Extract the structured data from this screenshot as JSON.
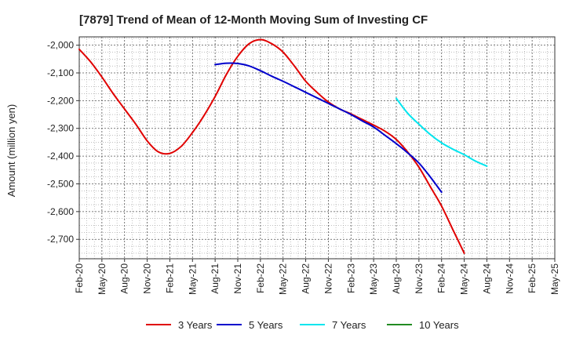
{
  "chart_data": {
    "type": "line",
    "title": "[7879]  Trend of Mean of 12-Month Moving Sum of Investing CF",
    "xlabel": "",
    "ylabel": "Amount (million yen)",
    "ylim": [
      -2770,
      -1970
    ],
    "yticks": [
      -2000,
      -2100,
      -2200,
      -2300,
      -2400,
      -2500,
      -2600,
      -2700
    ],
    "ytick_labels": [
      "-2,000",
      "-2,100",
      "-2,200",
      "-2,300",
      "-2,400",
      "-2,500",
      "-2,600",
      "-2,700"
    ],
    "x_categories": [
      "Feb-20",
      "May-20",
      "Aug-20",
      "Nov-20",
      "Feb-21",
      "May-21",
      "Aug-21",
      "Nov-21",
      "Feb-22",
      "May-22",
      "Aug-22",
      "Nov-22",
      "Feb-23",
      "May-23",
      "Aug-23",
      "Nov-23",
      "Feb-24",
      "May-24",
      "Aug-24",
      "Nov-24",
      "Feb-25",
      "May-25"
    ],
    "grid": true,
    "legend_position": "bottom",
    "series": [
      {
        "name": "3 Years",
        "color": "#e00000",
        "points": [
          [
            0,
            -2015
          ],
          [
            0.5,
            -2060
          ],
          [
            1,
            -2115
          ],
          [
            1.5,
            -2175
          ],
          [
            2,
            -2230
          ],
          [
            2.5,
            -2285
          ],
          [
            3,
            -2345
          ],
          [
            3.5,
            -2385
          ],
          [
            4,
            -2390
          ],
          [
            4.5,
            -2365
          ],
          [
            5,
            -2315
          ],
          [
            5.5,
            -2255
          ],
          [
            6,
            -2185
          ],
          [
            6.5,
            -2105
          ],
          [
            7,
            -2040
          ],
          [
            7.5,
            -1995
          ],
          [
            8,
            -1980
          ],
          [
            8.5,
            -1995
          ],
          [
            9,
            -2025
          ],
          [
            9.5,
            -2075
          ],
          [
            10,
            -2130
          ],
          [
            10.5,
            -2170
          ],
          [
            11,
            -2205
          ],
          [
            11.5,
            -2230
          ],
          [
            12,
            -2248
          ],
          [
            12.5,
            -2268
          ],
          [
            13,
            -2288
          ],
          [
            13.5,
            -2310
          ],
          [
            14,
            -2340
          ],
          [
            14.5,
            -2385
          ],
          [
            15,
            -2440
          ],
          [
            15.5,
            -2510
          ],
          [
            16,
            -2580
          ],
          [
            16.5,
            -2665
          ],
          [
            17,
            -2750
          ]
        ]
      },
      {
        "name": "5 Years",
        "color": "#0000cc",
        "points": [
          [
            6,
            -2070
          ],
          [
            6.5,
            -2065
          ],
          [
            7,
            -2066
          ],
          [
            7.5,
            -2075
          ],
          [
            8,
            -2092
          ],
          [
            8.5,
            -2112
          ],
          [
            9,
            -2130
          ],
          [
            9.5,
            -2150
          ],
          [
            10,
            -2170
          ],
          [
            10.5,
            -2190
          ],
          [
            11,
            -2210
          ],
          [
            11.5,
            -2230
          ],
          [
            12,
            -2250
          ],
          [
            12.5,
            -2273
          ],
          [
            13,
            -2295
          ],
          [
            13.5,
            -2325
          ],
          [
            14,
            -2355
          ],
          [
            14.5,
            -2388
          ],
          [
            15,
            -2425
          ],
          [
            15.5,
            -2475
          ],
          [
            16,
            -2530
          ]
        ]
      },
      {
        "name": "7 Years",
        "color": "#00e5ee",
        "points": [
          [
            14,
            -2192
          ],
          [
            14.5,
            -2245
          ],
          [
            15,
            -2285
          ],
          [
            15.5,
            -2322
          ],
          [
            16,
            -2352
          ],
          [
            16.5,
            -2375
          ],
          [
            17,
            -2395
          ],
          [
            17.5,
            -2418
          ],
          [
            18,
            -2436
          ]
        ]
      },
      {
        "name": "10 Years",
        "color": "#228b22",
        "points": []
      }
    ]
  }
}
